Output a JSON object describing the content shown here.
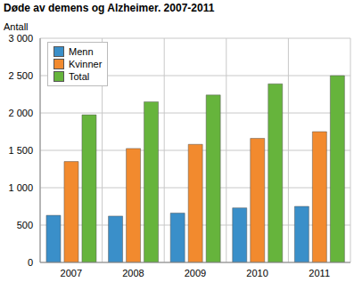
{
  "chart_data": {
    "type": "bar",
    "title": "Døde av demens og Alzheimer. 2007-2011",
    "y_label": "Antall",
    "categories": [
      "2007",
      "2008",
      "2009",
      "2010",
      "2011"
    ],
    "series": [
      {
        "name": "Menn",
        "color": "#3a8fc9",
        "values": [
          630,
          620,
          660,
          730,
          750
        ]
      },
      {
        "name": "Kvinner",
        "color": "#f28a2e",
        "values": [
          1350,
          1525,
          1580,
          1660,
          1750
        ]
      },
      {
        "name": "Total",
        "color": "#66b43c",
        "values": [
          1975,
          2150,
          2240,
          2390,
          2500
        ]
      }
    ],
    "ylim": [
      0,
      3000
    ],
    "yticks": [
      0,
      500,
      {
        "value": 1000,
        "label": "1 000"
      },
      {
        "value": 1500,
        "label": "1 500"
      },
      {
        "value": 2000,
        "label": "2 000"
      },
      {
        "value": 2500,
        "label": "2 500"
      },
      {
        "value": 3000,
        "label": "3 000"
      }
    ],
    "grid": true,
    "legend": "top-left"
  }
}
